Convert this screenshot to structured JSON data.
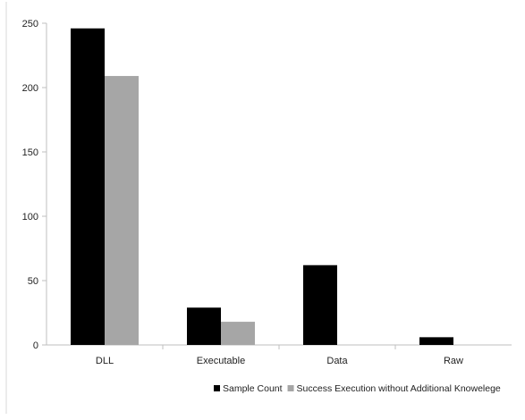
{
  "chart_data": {
    "type": "bar",
    "title": "",
    "xlabel": "",
    "ylabel": "",
    "categories": [
      "DLL",
      "Executable",
      "Data",
      "Raw"
    ],
    "series": [
      {
        "name": "Sample Count",
        "values": [
          246,
          29,
          62,
          6
        ],
        "color": "#000000"
      },
      {
        "name": "Success Execution without Additional Knowelege",
        "values": [
          209,
          18,
          0,
          0
        ],
        "color": "#a6a6a6"
      }
    ],
    "ylim": [
      0,
      250
    ],
    "yticks": [
      0,
      50,
      100,
      150,
      200,
      250
    ],
    "grid": false,
    "legend": "bottom-right"
  }
}
